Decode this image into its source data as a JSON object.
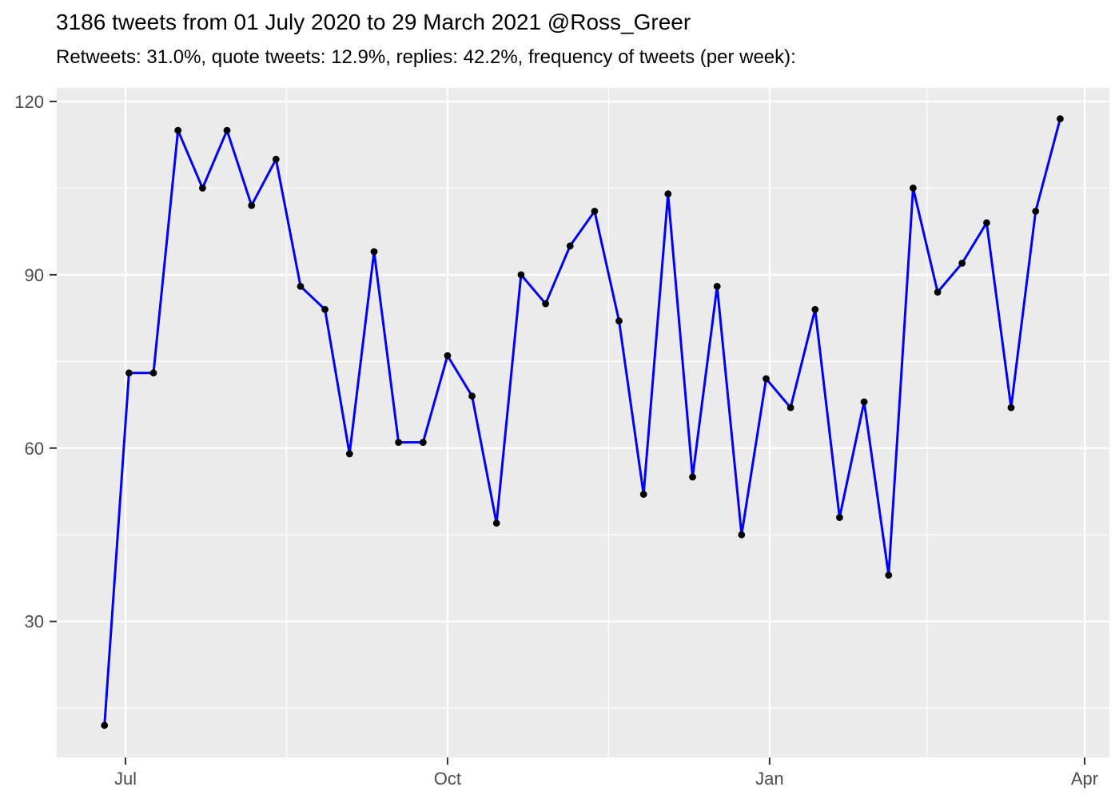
{
  "header": {
    "title": "3186 tweets from 01 July 2020 to 29 March 2021 @Ross_Greer",
    "subtitle": "Retweets: 31.0%, quote tweets: 12.9%, replies: 42.2%, frequency of tweets (per week):"
  },
  "chart_data": {
    "type": "line",
    "title": "3186 tweets from 01 July 2020 to 29 March 2021 @Ross_Greer",
    "subtitle": "Retweets: 31.0%, quote tweets: 12.9%, replies: 42.2%, frequency of tweets (per week):",
    "series_name": "tweets-per-week",
    "xlabel": "",
    "ylabel": "",
    "x": [
      "2020-06-25",
      "2020-07-02",
      "2020-07-09",
      "2020-07-16",
      "2020-07-23",
      "2020-07-30",
      "2020-08-06",
      "2020-08-13",
      "2020-08-20",
      "2020-08-27",
      "2020-09-03",
      "2020-09-10",
      "2020-09-17",
      "2020-09-24",
      "2020-10-01",
      "2020-10-08",
      "2020-10-15",
      "2020-10-22",
      "2020-10-29",
      "2020-11-05",
      "2020-11-12",
      "2020-11-19",
      "2020-11-26",
      "2020-12-03",
      "2020-12-10",
      "2020-12-17",
      "2020-12-24",
      "2020-12-31",
      "2021-01-07",
      "2021-01-14",
      "2021-01-21",
      "2021-01-28",
      "2021-02-04",
      "2021-02-11",
      "2021-02-18",
      "2021-02-25",
      "2021-03-04",
      "2021-03-11",
      "2021-03-18",
      "2021-03-25"
    ],
    "values": [
      12,
      73,
      73,
      115,
      105,
      115,
      102,
      110,
      88,
      84,
      59,
      94,
      61,
      61,
      76,
      69,
      47,
      90,
      85,
      95,
      101,
      82,
      52,
      104,
      55,
      88,
      45,
      72,
      67,
      84,
      48,
      68,
      38,
      105,
      87,
      92,
      99,
      67,
      101,
      117
    ],
    "total_label_count": 3186,
    "x_ticks": [
      {
        "date": "2020-07-01",
        "label": "Jul"
      },
      {
        "date": "2020-10-01",
        "label": "Oct"
      },
      {
        "date": "2021-01-01",
        "label": "Jan"
      },
      {
        "date": "2021-04-01",
        "label": "Apr"
      }
    ],
    "y_ticks": [
      {
        "value": 30,
        "label": "30"
      },
      {
        "value": 60,
        "label": "60"
      },
      {
        "value": 90,
        "label": "90"
      },
      {
        "value": 120,
        "label": "120"
      }
    ],
    "y_minor": [
      15,
      45,
      75,
      105
    ],
    "ylim": [
      7,
      122
    ],
    "grid": true,
    "legend": "none",
    "colors": {
      "line": "#0000FF",
      "point": "#000000",
      "panel_bg": "#EBEBEB",
      "grid": "#FFFFFF",
      "tick_label": "#4D4D4D",
      "tick_mark": "#333333",
      "title": "#000000"
    }
  }
}
